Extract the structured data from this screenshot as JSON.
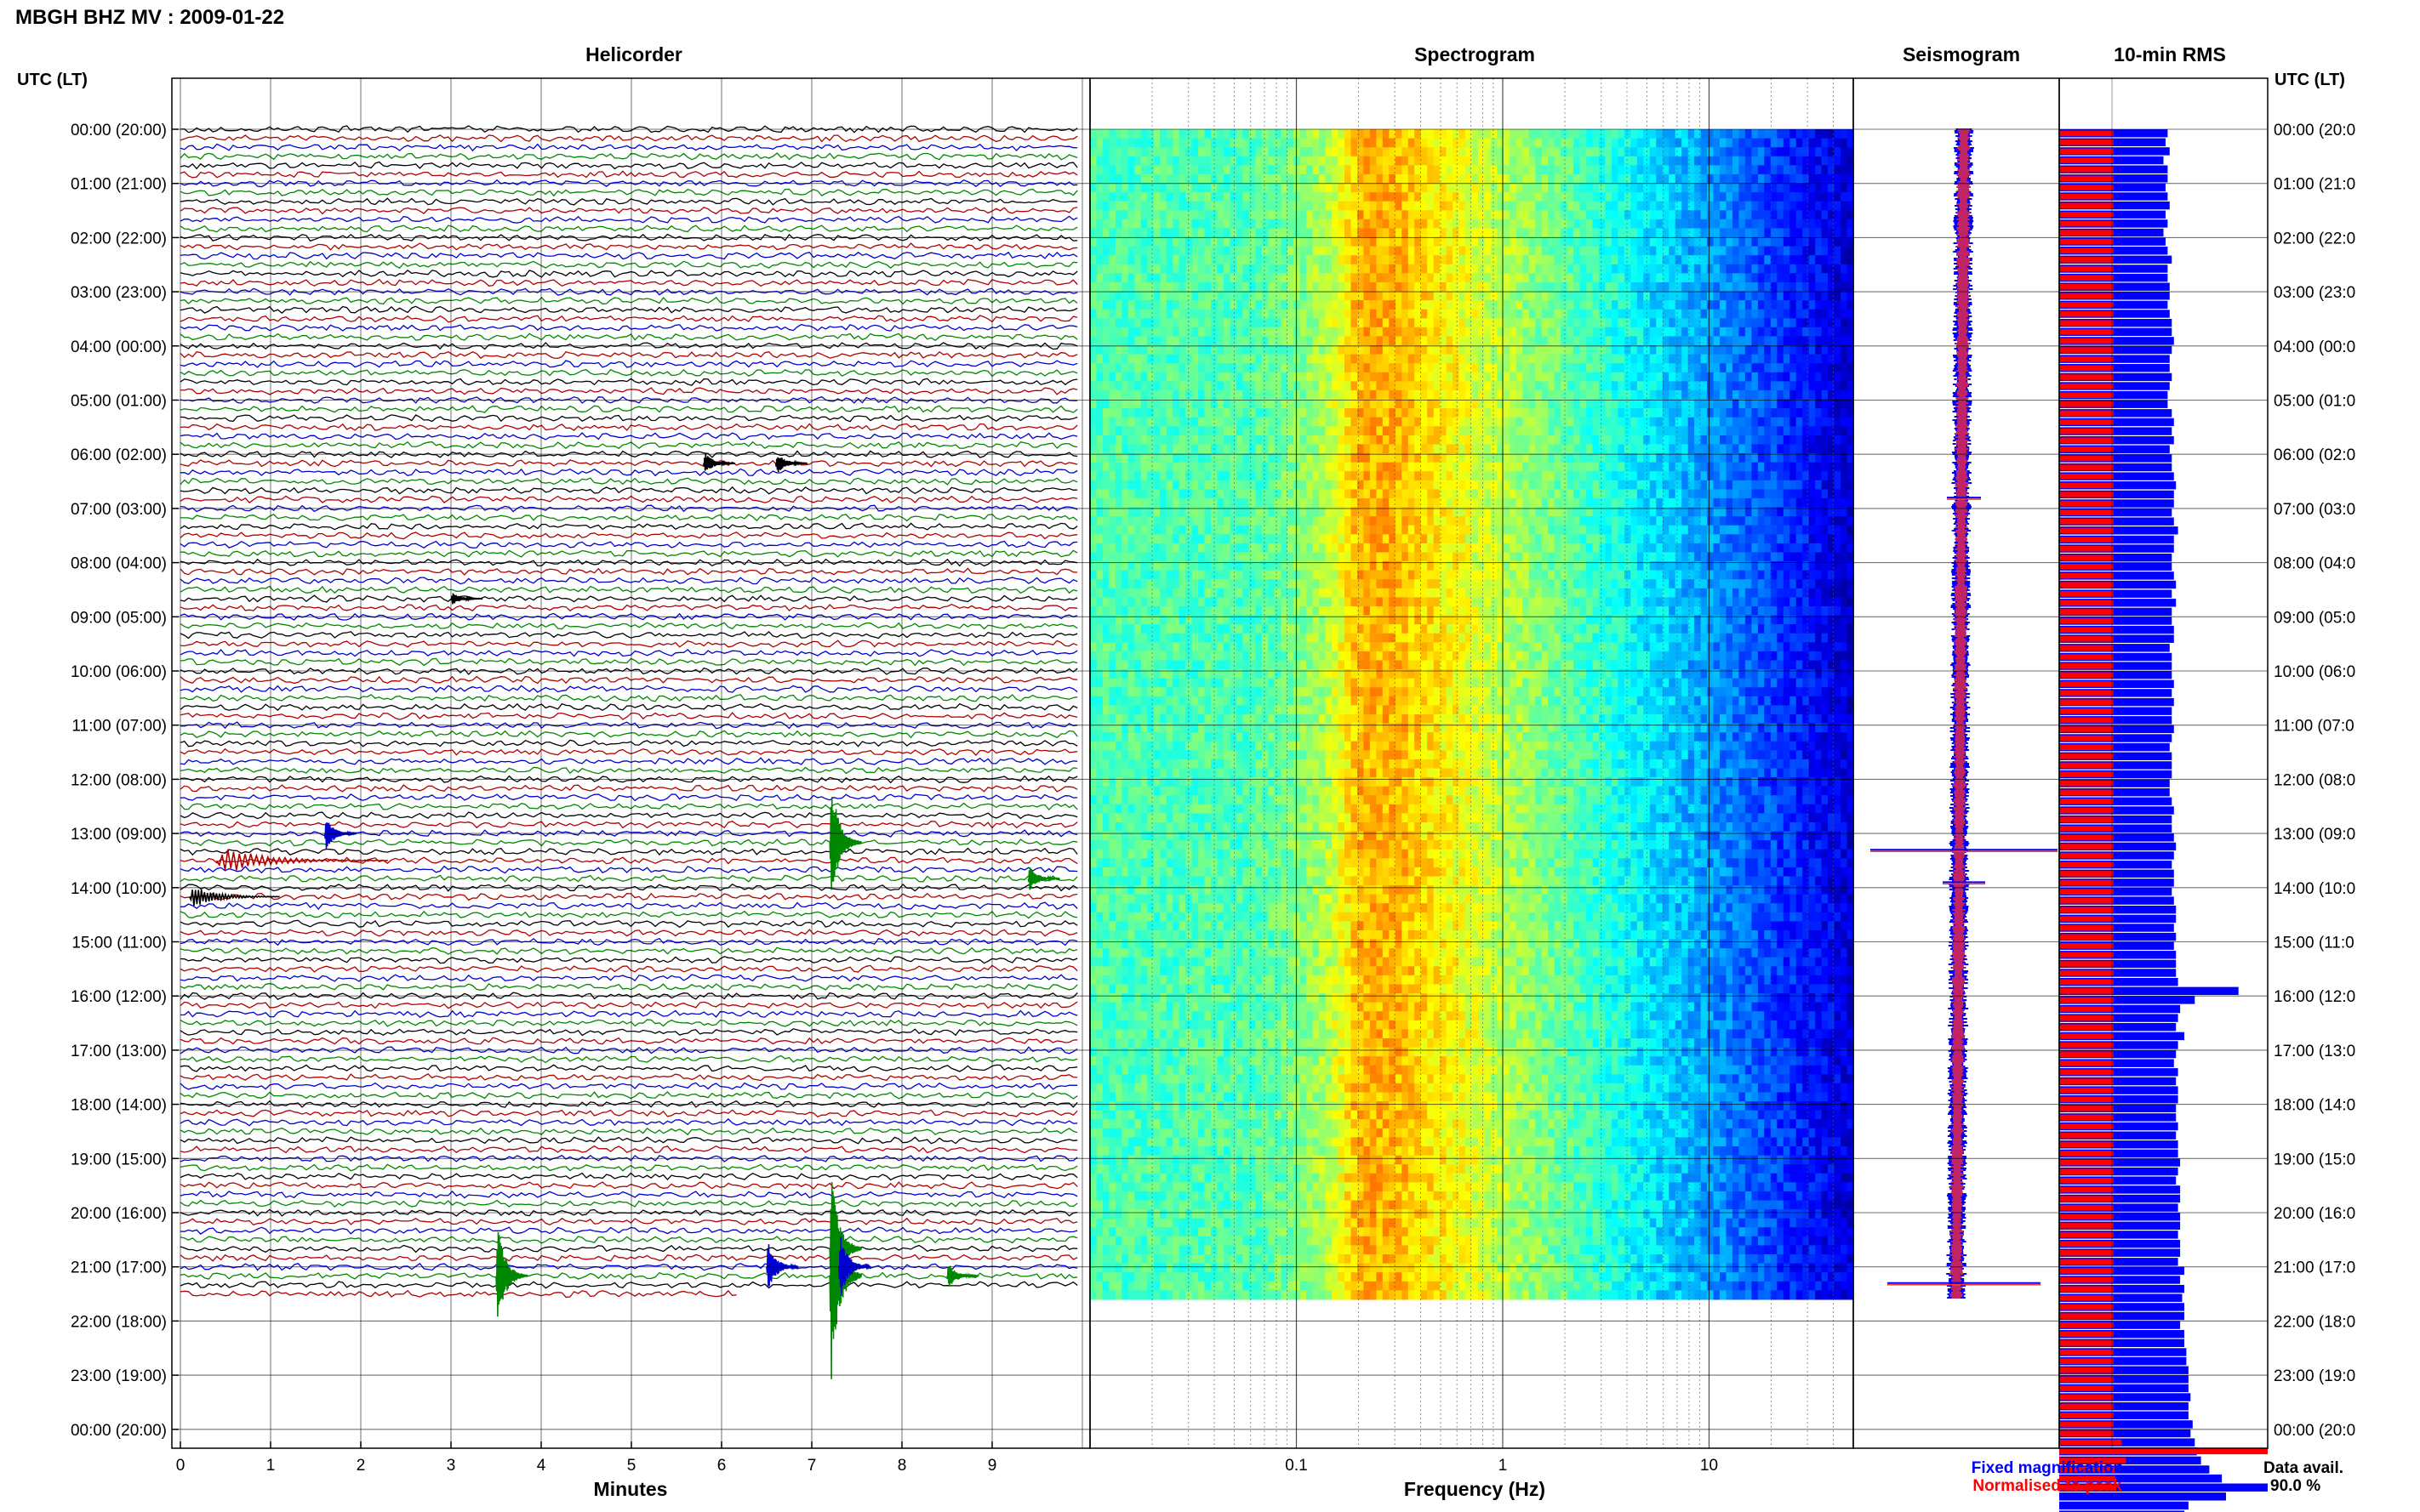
{
  "chart_data": {
    "type": "heatmap",
    "title": "MBGH BHZ MV : 2009-01-22",
    "panels": {
      "helicorder": {
        "title": "Helicorder",
        "xlabel": "Minutes",
        "xlim": [
          0,
          10
        ],
        "xticks": [
          "0",
          "1",
          "2",
          "3",
          "4",
          "5",
          "6",
          "7",
          "8",
          "9"
        ],
        "trace_colors": [
          "#000000",
          "#b00000",
          "#0000d0",
          "#008800"
        ],
        "rows_per_hour": 6,
        "hours_recorded": 21.6,
        "events": [
          {
            "time_utc": "06:00",
            "minute": 5.8,
            "amp": 0.25,
            "row": 1,
            "color": "#000000"
          },
          {
            "time_utc": "06:00",
            "minute": 6.6,
            "amp": 0.25,
            "row": 1,
            "color": "#000000"
          },
          {
            "time_utc": "08:00",
            "minute": 3.0,
            "amp": 0.15,
            "row": 4,
            "color": "#000000"
          },
          {
            "time_utc": "12:00",
            "minute": 1.6,
            "amp": 0.4,
            "row": 6,
            "color": "#0000d0"
          },
          {
            "time_utc": "12:00",
            "minute": 7.2,
            "amp": 1.5,
            "row": 7,
            "color": "#008800"
          },
          {
            "time_utc": "13:00",
            "minute": 0.4,
            "amp": 0.3,
            "row": 3,
            "color": "#b00000",
            "duration": 1.9
          },
          {
            "time_utc": "13:00",
            "minute": 9.4,
            "amp": 0.3,
            "row": 5,
            "color": "#008800"
          },
          {
            "time_utc": "14:00",
            "minute": 0.1,
            "amp": 0.25,
            "row": 1,
            "color": "#000000",
            "duration": 1.0
          },
          {
            "time_utc": "20:00",
            "minute": 7.2,
            "amp": 1.8,
            "row": 4,
            "color": "#008800"
          },
          {
            "time_utc": "21:00",
            "minute": 3.5,
            "amp": 1.2,
            "row": 1,
            "color": "#008800"
          },
          {
            "time_utc": "21:00",
            "minute": 6.5,
            "amp": 0.6,
            "row": 0,
            "color": "#0000d0"
          },
          {
            "time_utc": "21:00",
            "minute": 7.2,
            "amp": 2.5,
            "row": 1,
            "color": "#008800"
          },
          {
            "time_utc": "21:00",
            "minute": 7.3,
            "amp": 0.8,
            "row": 0,
            "color": "#0000d0"
          },
          {
            "time_utc": "21:00",
            "minute": 8.5,
            "amp": 0.3,
            "row": 1,
            "color": "#008800"
          }
        ]
      },
      "spectrogram": {
        "title": "Spectrogram",
        "xlabel": "Frequency (Hz)",
        "xscale": "log",
        "xlim": [
          0.01,
          50
        ],
        "xticks": [
          "0.1",
          "1",
          "10"
        ],
        "colormap": "jet",
        "peak_band_hz": [
          0.15,
          0.3
        ],
        "rows": 21.6
      },
      "seismogram": {
        "title": "Seismogram",
        "series": [
          {
            "name": "Fixed magnification",
            "color": "#0000ff"
          },
          {
            "name": "Normalised to peak",
            "color": "#ff0000"
          }
        ]
      },
      "rms": {
        "title": "10-min RMS",
        "unit_interval_min": 10,
        "fixed_blue": [
          0.52,
          0.51,
          0.53,
          0.5,
          0.52,
          0.52,
          0.51,
          0.52,
          0.53,
          0.51,
          0.52,
          0.5,
          0.51,
          0.52,
          0.54,
          0.52,
          0.52,
          0.53,
          0.53,
          0.52,
          0.53,
          0.54,
          0.54,
          0.55,
          0.54,
          0.53,
          0.53,
          0.54,
          0.53,
          0.52,
          0.52,
          0.54,
          0.55,
          0.54,
          0.55,
          0.53,
          0.54,
          0.54,
          0.55,
          0.56,
          0.55,
          0.55,
          0.54,
          0.55,
          0.57,
          0.55,
          0.55,
          0.54,
          0.54,
          0.55,
          0.56,
          0.54,
          0.56,
          0.54,
          0.54,
          0.55,
          0.55,
          0.53,
          0.54,
          0.54,
          0.54,
          0.55,
          0.54,
          0.55,
          0.54,
          0.54,
          0.55,
          0.54,
          0.53,
          0.54,
          0.54,
          0.54,
          0.53,
          0.53,
          0.54,
          0.55,
          0.54,
          0.54,
          0.55,
          0.56,
          0.55,
          0.54,
          0.55,
          0.55,
          0.54,
          0.55,
          0.56,
          0.56,
          0.55,
          0.56,
          0.55,
          0.56,
          0.56,
          0.56,
          0.57,
          0.86,
          0.65,
          0.58,
          0.57,
          0.56,
          0.6,
          0.57,
          0.56,
          0.55,
          0.57,
          0.56,
          0.57,
          0.57,
          0.56,
          0.56,
          0.57,
          0.56,
          0.57,
          0.57,
          0.58,
          0.57,
          0.56,
          0.58,
          0.58,
          0.57,
          0.58,
          0.58,
          0.57,
          0.58,
          0.58,
          0.57,
          0.6,
          0.58,
          0.6,
          0.59,
          0.6,
          0.6,
          0.58,
          0.6,
          0.6,
          0.61,
          0.61,
          0.62,
          0.62,
          0.62,
          0.63,
          0.62,
          0.62,
          0.64,
          0.63,
          0.65,
          0.66,
          0.68,
          0.72,
          0.78,
          1.0,
          0.8,
          0.62,
          0.6,
          0.6
        ],
        "normalised_red": [
          0.26,
          0.26,
          0.26,
          0.26,
          0.26,
          0.26,
          0.26,
          0.26,
          0.26,
          0.26,
          0.26,
          0.26,
          0.26,
          0.26,
          0.26,
          0.26,
          0.26,
          0.26,
          0.26,
          0.26,
          0.26,
          0.26,
          0.26,
          0.26,
          0.26,
          0.26,
          0.26,
          0.26,
          0.26,
          0.26,
          0.26,
          0.26,
          0.26,
          0.26,
          0.26,
          0.26,
          0.26,
          0.26,
          0.26,
          0.26,
          0.26,
          0.26,
          0.26,
          0.26,
          0.26,
          0.26,
          0.26,
          0.26,
          0.26,
          0.26,
          0.26,
          0.26,
          0.26,
          0.26,
          0.26,
          0.26,
          0.26,
          0.26,
          0.26,
          0.26,
          0.26,
          0.26,
          0.26,
          0.26,
          0.26,
          0.26,
          0.26,
          0.26,
          0.26,
          0.26,
          0.26,
          0.26,
          0.26,
          0.26,
          0.26,
          0.26,
          0.26,
          0.26,
          0.26,
          0.26,
          0.26,
          0.26,
          0.26,
          0.26,
          0.26,
          0.26,
          0.26,
          0.26,
          0.26,
          0.26,
          0.26,
          0.26,
          0.26,
          0.26,
          0.26,
          0.26,
          0.26,
          0.26,
          0.26,
          0.26,
          0.26,
          0.26,
          0.26,
          0.26,
          0.26,
          0.26,
          0.26,
          0.26,
          0.26,
          0.26,
          0.26,
          0.26,
          0.26,
          0.26,
          0.26,
          0.26,
          0.26,
          0.26,
          0.26,
          0.26,
          0.26,
          0.26,
          0.26,
          0.26,
          0.26,
          0.26,
          0.26,
          0.26,
          0.26,
          0.26,
          0.26,
          0.26,
          0.26,
          0.26,
          0.26,
          0.26,
          0.26,
          0.26,
          0.26,
          0.26,
          0.26,
          0.26,
          0.26,
          0.26,
          0.26,
          0.3,
          1.0,
          0.32,
          0.27,
          0.27,
          0.27
        ]
      }
    },
    "yaxis": {
      "left_header": "UTC (LT)",
      "right_header": "UTC (LT)",
      "left_labels": [
        "00:00 (20:00)",
        "01:00 (21:00)",
        "02:00 (22:00)",
        "03:00 (23:00)",
        "04:00 (00:00)",
        "05:00 (01:00)",
        "06:00 (02:00)",
        "07:00 (03:00)",
        "08:00 (04:00)",
        "09:00 (05:00)",
        "10:00 (06:00)",
        "11:00 (07:00)",
        "12:00 (08:00)",
        "13:00 (09:00)",
        "14:00 (10:00)",
        "15:00 (11:00)",
        "16:00 (12:00)",
        "17:00 (13:00)",
        "18:00 (14:00)",
        "19:00 (15:00)",
        "20:00 (16:00)",
        "21:00 (17:00)",
        "22:00 (18:00)",
        "23:00 (19:00)",
        "00:00 (20:00)"
      ],
      "right_labels": [
        "00:00 (20:0",
        "01:00 (21:0",
        "02:00 (22:0",
        "03:00 (23:0",
        "04:00 (00:0",
        "05:00 (01:0",
        "06:00 (02:0",
        "07:00 (03:0",
        "08:00 (04:0",
        "09:00 (05:0",
        "10:00 (06:0",
        "11:00 (07:0",
        "12:00 (08:0",
        "13:00 (09:0",
        "14:00 (10:0",
        "15:00 (11:0",
        "16:00 (12:0",
        "17:00 (13:0",
        "18:00 (14:0",
        "19:00 (15:0",
        "20:00 (16:0",
        "21:00 (17:0",
        "22:00 (18:0",
        "23:00 (19:0",
        "00:00 (20:0"
      ]
    },
    "legend": {
      "fixed_label": "Fixed magnification",
      "normalised_label": "Normalised to peak",
      "fixed_color": "#0000ff",
      "normalised_color": "#ff0000"
    },
    "data_availability": {
      "label": "Data avail.",
      "value": "90.0 %"
    }
  }
}
